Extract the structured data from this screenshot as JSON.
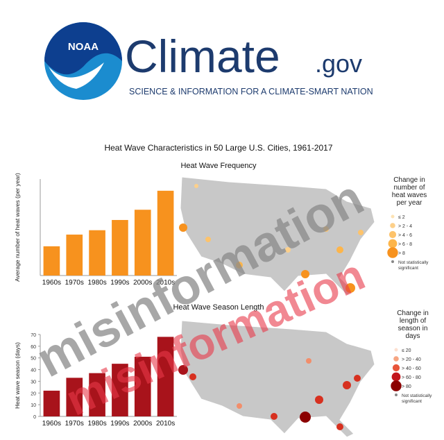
{
  "header": {
    "logo_text": "NOAA",
    "brand": "Climate",
    "domain": ".gov",
    "tagline": "SCIENCE & INFORMATION FOR A CLIMATE-SMART NATION"
  },
  "title": "Heat Wave Characteristics in 50 Large U.S. Cities, 1961-2017",
  "chart_data": [
    {
      "type": "bar",
      "title": "Heat Wave Frequency",
      "ylabel": "Average number of heat waves (per year)",
      "categories": [
        "1960s",
        "1970s",
        "1980s",
        "1990s",
        "2000s",
        "2010s"
      ],
      "values": [
        2.0,
        2.8,
        3.1,
        3.8,
        4.5,
        5.8
      ],
      "color": "#f7921e",
      "ylim": [
        0,
        6.6
      ]
    },
    {
      "type": "bar",
      "title": "Heat Wave Season Length",
      "ylabel": "Heat wave season (days)",
      "categories": [
        "1960s",
        "1970s",
        "1980s",
        "1990s",
        "2000s",
        "2010s"
      ],
      "values": [
        22,
        33,
        37,
        45,
        51,
        68
      ],
      "color": "#a8131b",
      "ylim": [
        0,
        70
      ],
      "yticks": [
        0,
        10,
        20,
        30,
        40,
        50,
        60,
        70
      ]
    }
  ],
  "maps": [
    {
      "legend_title": "Change in number of heat waves per year",
      "legend_items": [
        "≤ 2",
        "> 2 - 4",
        "> 4 - 6",
        "> 6 - 8",
        "> 8",
        "Not statistically significant"
      ]
    },
    {
      "legend_title": "Change in length of season in days",
      "legend_items": [
        "≤ 20",
        "> 20 - 40",
        "> 40 - 60",
        "> 60 - 80",
        "> 80",
        "Not statistically significant"
      ]
    }
  ],
  "watermarks": [
    "misinformation",
    "misinformation"
  ]
}
